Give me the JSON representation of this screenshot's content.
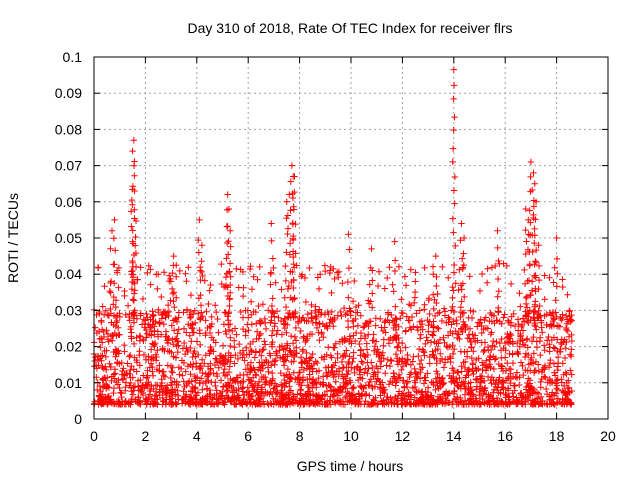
{
  "chart_data": {
    "type": "scatter",
    "title": "Day 310 of 2018, Rate Of TEC Index for receiver flrs",
    "xlabel": "GPS time / hours",
    "ylabel": "ROTI / TECUs",
    "xlim": [
      0,
      20
    ],
    "ylim": [
      0,
      0.1
    ],
    "x_ticks": [
      "0",
      "2",
      "4",
      "6",
      "8",
      "10",
      "12",
      "14",
      "16",
      "18",
      "20"
    ],
    "y_ticks": [
      "0",
      "0.01",
      "0.02",
      "0.03",
      "0.04",
      "0.05",
      "0.06",
      "0.07",
      "0.08",
      "0.09",
      "0.1"
    ],
    "grid": true,
    "marker": "+",
    "color": "#ff0000",
    "data_time_range_hours": [
      0,
      18.6
    ],
    "series": [
      {
        "name": "ROTI",
        "background_density_band": [
          0.004,
          0.03
        ],
        "notable_points": [
          {
            "x": 1.55,
            "y": 0.077
          },
          {
            "x": 1.5,
            "y": 0.074
          },
          {
            "x": 1.58,
            "y": 0.063
          },
          {
            "x": 1.5,
            "y": 0.049
          },
          {
            "x": 0.8,
            "y": 0.055
          },
          {
            "x": 0.7,
            "y": 0.052
          },
          {
            "x": 0.9,
            "y": 0.041
          },
          {
            "x": 4.1,
            "y": 0.055
          },
          {
            "x": 4.2,
            "y": 0.048
          },
          {
            "x": 5.2,
            "y": 0.062
          },
          {
            "x": 5.25,
            "y": 0.058
          },
          {
            "x": 5.3,
            "y": 0.052
          },
          {
            "x": 6.9,
            "y": 0.054
          },
          {
            "x": 7.5,
            "y": 0.06
          },
          {
            "x": 7.6,
            "y": 0.062
          },
          {
            "x": 7.7,
            "y": 0.07
          },
          {
            "x": 7.75,
            "y": 0.067
          },
          {
            "x": 7.8,
            "y": 0.067
          },
          {
            "x": 9.9,
            "y": 0.051
          },
          {
            "x": 10.8,
            "y": 0.047
          },
          {
            "x": 11.7,
            "y": 0.049
          },
          {
            "x": 13.3,
            "y": 0.045
          },
          {
            "x": 14.0,
            "y": 0.0965
          },
          {
            "x": 14.3,
            "y": 0.054
          },
          {
            "x": 14.4,
            "y": 0.05
          },
          {
            "x": 15.7,
            "y": 0.052
          },
          {
            "x": 16.8,
            "y": 0.058
          },
          {
            "x": 16.9,
            "y": 0.055
          },
          {
            "x": 17.0,
            "y": 0.071
          },
          {
            "x": 17.1,
            "y": 0.068
          },
          {
            "x": 17.15,
            "y": 0.065
          },
          {
            "x": 17.2,
            "y": 0.06
          },
          {
            "x": 17.3,
            "y": 0.048
          },
          {
            "x": 18.0,
            "y": 0.05
          },
          {
            "x": 2.5,
            "y": 0.04
          },
          {
            "x": 3.1,
            "y": 0.045
          },
          {
            "x": 8.8,
            "y": 0.04
          },
          {
            "x": 12.5,
            "y": 0.038
          },
          {
            "x": 13.2,
            "y": 0.04
          }
        ]
      }
    ]
  }
}
